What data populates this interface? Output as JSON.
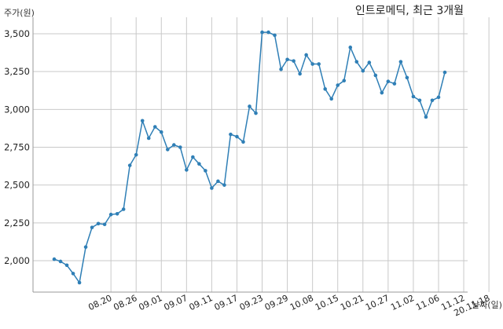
{
  "chart_data": {
    "type": "line",
    "title": "인트로메딕, 최근 3개월",
    "ylabel": "주가(원)",
    "xlabel": "날짜(일)",
    "ylim": [
      1800,
      3600
    ],
    "yticks": [
      2000,
      2250,
      2500,
      2750,
      3000,
      3250,
      3500
    ],
    "ytick_labels": [
      "2,000",
      "2,250",
      "2,500",
      "2,750",
      "3,000",
      "3,250",
      "3,500"
    ],
    "grid": true,
    "x_tick_labels": [
      {
        "label": "08.20",
        "index": 9
      },
      {
        "label": "08.26",
        "index": 13
      },
      {
        "label": "09.01",
        "index": 17
      },
      {
        "label": "09.07",
        "index": 21
      },
      {
        "label": "09.11",
        "index": 25
      },
      {
        "label": "09.17",
        "index": 29
      },
      {
        "label": "09.23",
        "index": 33
      },
      {
        "label": "09.29",
        "index": 37
      },
      {
        "label": "10.08",
        "index": 41
      },
      {
        "label": "10.15",
        "index": 45
      },
      {
        "label": "10.21",
        "index": 49
      },
      {
        "label": "10.27",
        "index": 53
      },
      {
        "label": "11.02",
        "index": 57
      },
      {
        "label": "11.06",
        "index": 61
      },
      {
        "label": "11.12",
        "index": 65
      },
      {
        "label": "20.11.18",
        "index": 69
      }
    ],
    "series": [
      {
        "color": "#2f7fb6",
        "values": [
          2010,
          1995,
          1970,
          1915,
          1855,
          2090,
          2220,
          2245,
          2240,
          2305,
          2310,
          2340,
          2630,
          2700,
          2925,
          2810,
          2885,
          2850,
          2735,
          2765,
          2750,
          2600,
          2685,
          2640,
          2595,
          2480,
          2525,
          2500,
          2835,
          2820,
          2785,
          3020,
          2975,
          3510,
          3510,
          3490,
          3265,
          3330,
          3320,
          3235,
          3360,
          3300,
          3300,
          3135,
          3070,
          3160,
          3190,
          3410,
          3315,
          3255,
          3310,
          3225,
          3110,
          3185,
          3170,
          3315,
          3210,
          3085,
          3060,
          2950,
          3060,
          3080,
          3245
        ]
      }
    ]
  }
}
